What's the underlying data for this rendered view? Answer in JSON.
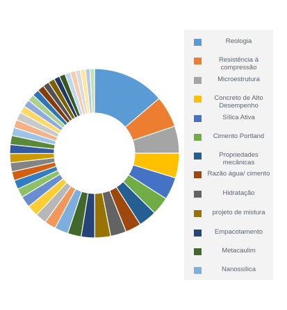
{
  "chart_data": {
    "type": "pie",
    "style": "donut",
    "title": "",
    "legend_position": "right",
    "slices": [
      {
        "label": "Reologia",
        "value": 16,
        "color": "#5b9bd5"
      },
      {
        "label": "Resistência à compressão",
        "value": 7,
        "color": "#ed7d31"
      },
      {
        "label": "Microestrutura",
        "value": 6,
        "color": "#a5a5a5"
      },
      {
        "label": "Concreto de Alto Desempenho",
        "value": 5.5,
        "color": "#ffc000"
      },
      {
        "label": "Sílica Ativa",
        "value": 5,
        "color": "#4472c4"
      },
      {
        "label": "Cimento Portland",
        "value": 4,
        "color": "#70ad47"
      },
      {
        "label": "Propriedades mecânicas",
        "value": 4,
        "color": "#255e91"
      },
      {
        "label": "Razão água/ cimento",
        "value": 3.5,
        "color": "#9e480e"
      },
      {
        "label": "Hidratação",
        "value": 3.5,
        "color": "#636363"
      },
      {
        "label": "projeto de mistura",
        "value": 3.5,
        "color": "#997300"
      },
      {
        "label": "Empacotamento",
        "value": 3,
        "color": "#264478"
      },
      {
        "label": "Metacaulim",
        "value": 3,
        "color": "#43682b"
      },
      {
        "label": "Nanossílica",
        "value": 3,
        "color": "#7cafdd"
      },
      {
        "label": "",
        "value": 2.5,
        "color": "#f1975a"
      },
      {
        "label": "",
        "value": 2.5,
        "color": "#b7b7b7"
      },
      {
        "label": "",
        "value": 2.5,
        "color": "#ffcd33"
      },
      {
        "label": "",
        "value": 2.5,
        "color": "#698ed0"
      },
      {
        "label": "",
        "value": 2,
        "color": "#8cc168"
      },
      {
        "label": "",
        "value": 2,
        "color": "#327dc2"
      },
      {
        "label": "",
        "value": 2,
        "color": "#d26012"
      },
      {
        "label": "",
        "value": 2,
        "color": "#848484"
      },
      {
        "label": "",
        "value": 2,
        "color": "#cc9a00"
      },
      {
        "label": "",
        "value": 2,
        "color": "#335aa1"
      },
      {
        "label": "",
        "value": 2,
        "color": "#5a8a39"
      },
      {
        "label": "",
        "value": 1.8,
        "color": "#9dc3e6"
      },
      {
        "label": "",
        "value": 1.8,
        "color": "#f4b183"
      },
      {
        "label": "",
        "value": 1.8,
        "color": "#c9c9c9"
      },
      {
        "label": "",
        "value": 1.6,
        "color": "#ffd966"
      },
      {
        "label": "",
        "value": 1.6,
        "color": "#8faadc"
      },
      {
        "label": "",
        "value": 1.5,
        "color": "#a9d18e"
      },
      {
        "label": "",
        "value": 1.5,
        "color": "#2e75b6"
      },
      {
        "label": "",
        "value": 1.5,
        "color": "#843c0c"
      },
      {
        "label": "",
        "value": 1.4,
        "color": "#525252"
      },
      {
        "label": "",
        "value": 1.4,
        "color": "#7f6000"
      },
      {
        "label": "",
        "value": 1.3,
        "color": "#1f3864"
      },
      {
        "label": "",
        "value": 1.3,
        "color": "#385723"
      },
      {
        "label": "",
        "value": 1.2,
        "color": "#bdd7ee"
      },
      {
        "label": "",
        "value": 1.2,
        "color": "#f8cbad"
      },
      {
        "label": "",
        "value": 1.1,
        "color": "#dbdbdb"
      },
      {
        "label": "",
        "value": 1.1,
        "color": "#ffe699"
      },
      {
        "label": "",
        "value": 1,
        "color": "#b4c7e7"
      },
      {
        "label": "",
        "value": 1,
        "color": "#c5e0b4"
      }
    ]
  }
}
